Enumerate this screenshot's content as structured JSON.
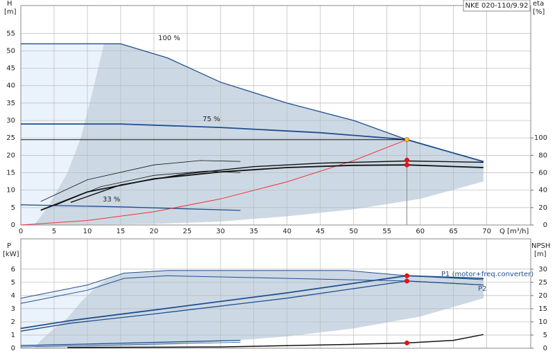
{
  "chart_data": [
    {
      "type": "line",
      "label": "NKE 020-110/9.92",
      "ylabel": [
        "H",
        "[m]"
      ],
      "y2label": [
        "eta",
        "[%]"
      ],
      "xlabel": "Q [m³/h]",
      "xlim": [
        0,
        76.6
      ],
      "ylim": [
        0,
        63
      ],
      "y2lim": [
        0,
        252
      ],
      "xticks": [
        0,
        5,
        10,
        15,
        20,
        25,
        30,
        35,
        40,
        45,
        50,
        55,
        60,
        65,
        70
      ],
      "yticks": [
        0,
        5,
        10,
        15,
        20,
        25,
        30,
        35,
        40,
        45,
        50,
        55
      ],
      "y2ticks": [
        0,
        20,
        40,
        60,
        80,
        100
      ],
      "grid": true,
      "annotations": [
        "100 %",
        "75 %",
        "33 %"
      ],
      "areas": [
        {
          "color": "#eaf2fb",
          "x": [
            0,
            0,
            12.5,
            11,
            9,
            7,
            4,
            2
          ],
          "values": [
            0,
            52,
            52,
            40,
            25,
            15,
            5,
            0
          ]
        },
        {
          "color": "#ccd9e5",
          "x": [
            12.5,
            15,
            22,
            30,
            40,
            50,
            58,
            69.5,
            69.5,
            60,
            50,
            40,
            30,
            20,
            5,
            2,
            4,
            7,
            9,
            11
          ],
          "values": [
            52,
            52,
            48,
            41,
            35,
            30,
            24.5,
            18.2,
            12.5,
            7.5,
            4.5,
            2.5,
            1,
            0.3,
            0,
            0,
            5,
            15,
            25,
            40
          ]
        }
      ],
      "series": [
        {
          "color": "#1f4e8c",
          "width": 1.3,
          "x": [
            0,
            15,
            22,
            30,
            40,
            50,
            58,
            69.5
          ],
          "values": [
            52,
            52,
            48,
            41,
            35,
            30,
            24.5,
            18.2
          ]
        },
        {
          "color": "#1f4e8c",
          "width": 1.8,
          "x": [
            0,
            15,
            30,
            45,
            58,
            69.5
          ],
          "values": [
            29,
            29,
            28,
            26.5,
            24.5,
            18.2
          ]
        },
        {
          "color": "#1f4e8c",
          "width": 1.3,
          "x": [
            0,
            15,
            33
          ],
          "values": [
            5.8,
            5.2,
            4.2
          ]
        },
        {
          "color": "#111111",
          "width": 1,
          "x": [
            0,
            58
          ],
          "values": [
            24.5,
            24.5
          ]
        },
        {
          "color": "#888888",
          "width": 1,
          "x": [
            58,
            58
          ],
          "values": [
            0,
            24.5
          ]
        },
        {
          "color": "#ee3333",
          "width": 1,
          "x": [
            0,
            10,
            20,
            30,
            40,
            50,
            58
          ],
          "values": [
            0,
            1.3,
            3.8,
            7.5,
            12.4,
            18.5,
            24.5
          ]
        },
        {
          "color": "#111111",
          "width": 1.8,
          "axis": "y2",
          "x": [
            3,
            10,
            20,
            30,
            40,
            50,
            58,
            69.5
          ],
          "values": [
            17,
            38,
            53,
            61,
            66,
            68.5,
            69,
            66
          ]
        },
        {
          "color": "#111111",
          "width": 1.4,
          "axis": "y2",
          "x": [
            7.5,
            15,
            25,
            35,
            45,
            58,
            69.5
          ],
          "values": [
            26,
            46,
            59,
            67,
            71,
            73.5,
            72
          ]
        },
        {
          "color": "#111111",
          "width": 0.8,
          "axis": "y2",
          "x": [
            3,
            10,
            20,
            27,
            33
          ],
          "values": [
            27,
            52,
            69,
            74,
            73
          ]
        },
        {
          "color": "#111111",
          "width": 0.8,
          "axis": "y2",
          "x": [
            5,
            12,
            20,
            28,
            33
          ],
          "values": [
            22,
            44,
            57,
            62,
            60
          ]
        },
        {
          "color": "#ee1111",
          "points": true,
          "axis": "y2",
          "x": [
            58,
            58
          ],
          "values": [
            74.5,
            69
          ]
        },
        {
          "color": "#f5c518",
          "points": true,
          "x": [
            58
          ],
          "values": [
            24.5
          ]
        }
      ]
    },
    {
      "type": "line",
      "ylabel": [
        "P",
        "[kW]"
      ],
      "y2label": [
        "NPSH",
        "[m]"
      ],
      "xlim": [
        0,
        76.6
      ],
      "ylim": [
        0,
        8.3
      ],
      "y2lim": [
        0,
        41.5
      ],
      "yticks": [
        0,
        1,
        2,
        3,
        4,
        5,
        6
      ],
      "y2ticks": [
        0,
        5,
        10,
        15,
        20,
        25,
        30
      ],
      "grid": true,
      "areas": [
        {
          "color": "#eaf2fb",
          "x": [
            0,
            0,
            10,
            15.5,
            13,
            11,
            9,
            7,
            5,
            3,
            2
          ],
          "values": [
            0,
            3.8,
            4.8,
            5.7,
            5.3,
            4.5,
            3.5,
            2.3,
            1.5,
            0.6,
            0
          ]
        },
        {
          "color": "#ccd9e5",
          "x": [
            15.5,
            22,
            49,
            58,
            69.5,
            69.5,
            60,
            50,
            40,
            30,
            20,
            10,
            2,
            3,
            5,
            7,
            9,
            11,
            13
          ],
          "values": [
            5.7,
            5.9,
            5.9,
            5.5,
            5.2,
            3.8,
            2.4,
            1.5,
            0.9,
            0.5,
            0.2,
            0.1,
            0,
            0.6,
            1.5,
            2.3,
            3.5,
            4.5,
            5.3
          ]
        }
      ],
      "series": [
        {
          "color": "#1f4e8c",
          "width": 1,
          "x": [
            0,
            10,
            15.5,
            22,
            49,
            58,
            69.5
          ],
          "values": [
            3.8,
            4.8,
            5.7,
            5.9,
            5.9,
            5.5,
            5.2
          ]
        },
        {
          "color": "#1f4e8c",
          "width": 1,
          "x": [
            0,
            10,
            15.5,
            22,
            58,
            69.5
          ],
          "values": [
            3.4,
            4.4,
            5.3,
            5.5,
            5.1,
            4.8
          ]
        },
        {
          "name": "P1 (motor+freq.converter)",
          "color": "#1f4e8c",
          "width": 1.8,
          "x": [
            0,
            7.5,
            20,
            40,
            58,
            69.5
          ],
          "values": [
            1.5,
            2.1,
            2.9,
            4.2,
            5.5,
            5.3
          ]
        },
        {
          "name": "P2",
          "color": "#1f4e8c",
          "width": 1.3,
          "x": [
            0,
            7.5,
            20,
            40,
            58,
            69.5
          ],
          "values": [
            1.3,
            1.9,
            2.6,
            3.8,
            5.1,
            4.8
          ]
        },
        {
          "color": "#1f4e8c",
          "width": 1.3,
          "x": [
            0,
            33
          ],
          "values": [
            0.2,
            0.6
          ]
        },
        {
          "color": "#1f4e8c",
          "width": 0.8,
          "x": [
            0,
            33
          ],
          "values": [
            0.1,
            0.45
          ]
        },
        {
          "color": "#111111",
          "width": 1.5,
          "axis": "y2",
          "x": [
            7,
            30,
            50,
            58,
            65,
            69.5
          ],
          "values": [
            0.3,
            0.5,
            1.5,
            2,
            3,
            5.2
          ]
        },
        {
          "color": "#ee1111",
          "points": true,
          "x": [
            58,
            58
          ],
          "values": [
            5.5,
            5.1
          ]
        },
        {
          "color": "#ee1111",
          "points": true,
          "axis": "y2",
          "x": [
            58
          ],
          "values": [
            2
          ]
        }
      ]
    }
  ]
}
